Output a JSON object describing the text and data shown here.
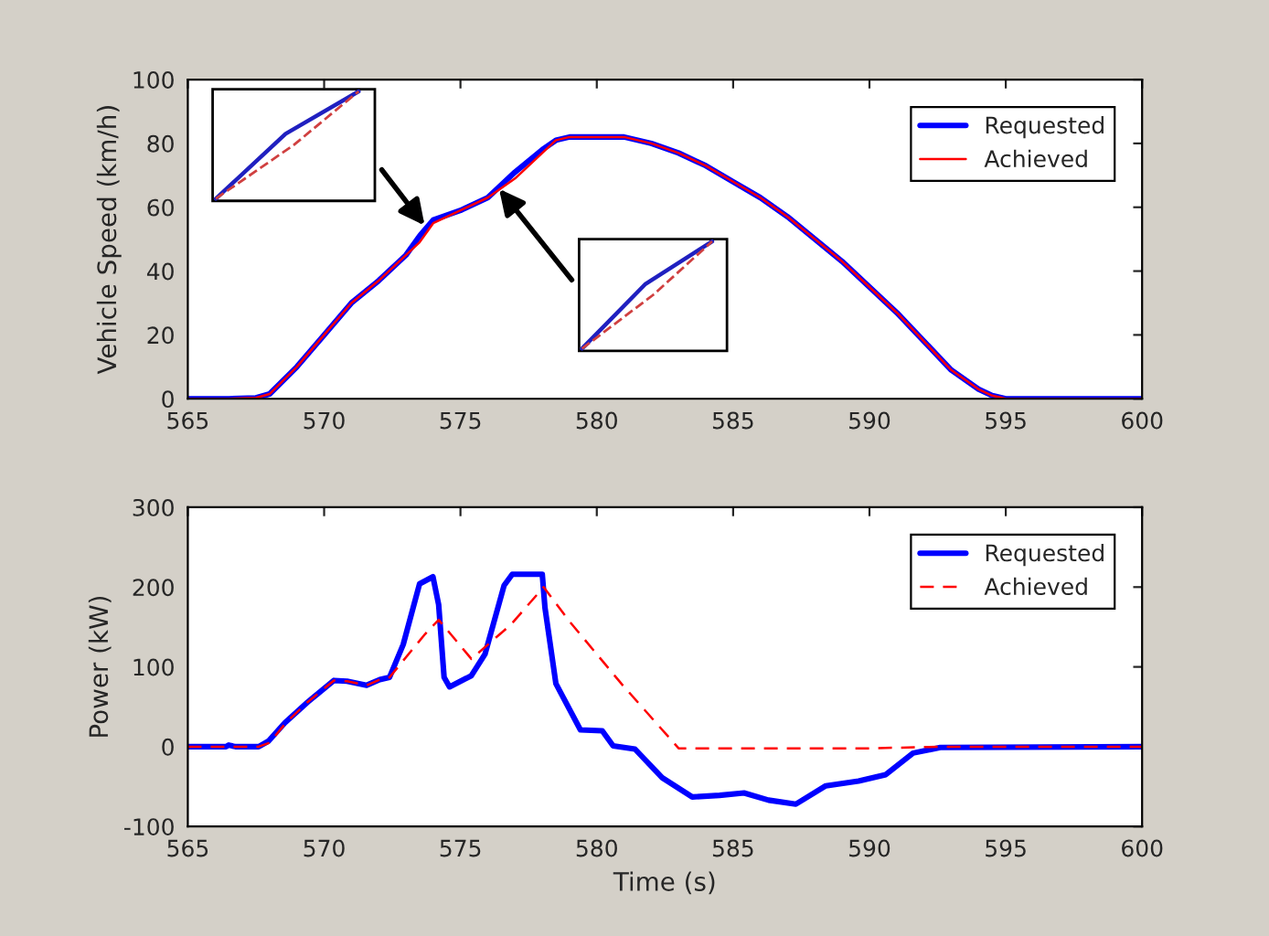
{
  "chart_data": [
    {
      "type": "line",
      "ylabel": "Vehicle Speed (km/h)",
      "xlim": [
        565,
        600
      ],
      "xticks": [
        565,
        570,
        575,
        580,
        585,
        590,
        595,
        600
      ],
      "ylim": [
        0,
        100
      ],
      "yticks": [
        0,
        20,
        40,
        60,
        80,
        100
      ],
      "grid": false,
      "legend": "top right",
      "marker": "none",
      "series": [
        {
          "name": "Requested",
          "color": "#0000ff",
          "line_style": "solid",
          "x": [
            565,
            566.5,
            567.5,
            568,
            569,
            570,
            571,
            572,
            573,
            573.5,
            574,
            575,
            576,
            577,
            578,
            578.5,
            579,
            580,
            581,
            582,
            583,
            584,
            585,
            586,
            587,
            588,
            589,
            590,
            591,
            592,
            593,
            594,
            594.5,
            595,
            600
          ],
          "values": [
            0,
            0,
            0.3,
            1.5,
            10,
            20,
            30,
            37,
            45,
            51,
            56,
            59,
            63,
            71,
            78,
            81,
            82,
            82,
            82,
            80,
            77,
            73,
            68,
            63,
            57,
            50,
            43,
            35,
            27,
            18,
            9,
            3,
            1,
            0,
            0
          ]
        },
        {
          "name": "Achieved",
          "color": "#ff0000",
          "line_style": "solid",
          "x": [
            565,
            566.5,
            567.5,
            568,
            569,
            570,
            571,
            572,
            573,
            573.5,
            574,
            575,
            576,
            577,
            578,
            578.5,
            579,
            580,
            581,
            582,
            583,
            584,
            585,
            586,
            587,
            588,
            589,
            590,
            591,
            592,
            593,
            594,
            594.5,
            595,
            600
          ],
          "values": [
            0,
            0,
            0.3,
            1.5,
            10,
            20,
            30,
            37,
            45,
            49,
            55,
            59,
            63,
            69,
            77,
            81,
            82,
            82,
            82,
            80,
            77,
            73,
            68,
            63,
            57,
            50,
            43,
            35,
            27,
            18,
            9,
            3,
            1,
            0,
            0
          ]
        }
      ]
    },
    {
      "type": "line",
      "xlabel": "Time (s)",
      "ylabel": "Power (kW)",
      "xlim": [
        565,
        600
      ],
      "xticks": [
        565,
        570,
        575,
        580,
        585,
        590,
        595,
        600
      ],
      "ylim": [
        -100,
        300
      ],
      "yticks": [
        -100,
        0,
        100,
        200,
        300
      ],
      "grid": false,
      "legend": "top right",
      "marker": "none",
      "series": [
        {
          "name": "Requested",
          "color": "#0000ff",
          "line_style": "solid",
          "x": [
            565,
            566.4,
            566.5,
            566.75,
            567.6,
            567.96,
            568.56,
            569.4,
            570.36,
            570.84,
            571.56,
            572.04,
            572.4,
            572.9,
            573.5,
            573.99,
            574.2,
            574.4,
            574.6,
            575.4,
            575.9,
            576.6,
            576.9,
            578,
            578.1,
            578.5,
            579.4,
            580.2,
            580.6,
            581.4,
            582.4,
            583.5,
            584.5,
            585.4,
            586.3,
            587.3,
            588.4,
            589.6,
            590.6,
            591.6,
            592.6,
            600
          ],
          "values": [
            0,
            0,
            2,
            0,
            0,
            7,
            30,
            56,
            83,
            82,
            77,
            84,
            87,
            128,
            204,
            213,
            178,
            87,
            75,
            89,
            116,
            202,
            216,
            216,
            174,
            79,
            21,
            20,
            1,
            -3,
            -39,
            -63,
            -61,
            -58,
            -67,
            -72,
            -49,
            -43,
            -35,
            -8,
            -1,
            0
          ]
        },
        {
          "name": "Achieved",
          "color": "#ff0000",
          "line_style": "dashed",
          "x": [
            565,
            567.6,
            568,
            568.6,
            569.4,
            570.36,
            570.84,
            571.56,
            572.04,
            572.4,
            573.7,
            574.2,
            575.4,
            576.85,
            578.05,
            579,
            580.9,
            583,
            590,
            592.7,
            600
          ],
          "values": [
            0,
            0,
            5,
            30,
            56,
            83,
            82,
            77,
            84,
            87,
            141,
            159,
            110,
            153,
            200,
            157,
            79,
            -2,
            -2,
            0,
            0
          ]
        }
      ]
    }
  ]
}
